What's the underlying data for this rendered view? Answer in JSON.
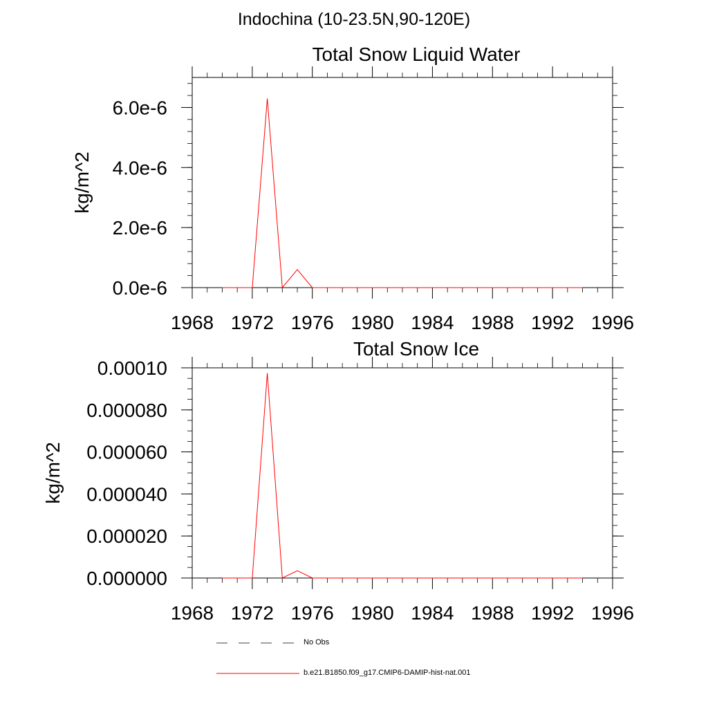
{
  "page": {
    "title": "Indochina (10-23.5N,90-120E)"
  },
  "chart_data": [
    {
      "type": "line",
      "title": "Total Snow Liquid Water",
      "ylabel": "kg/m^2",
      "xlim": [
        1968,
        1996
      ],
      "ylim": [
        0,
        7e-06
      ],
      "x_ticks": [
        1968,
        1972,
        1976,
        1980,
        1984,
        1988,
        1992,
        1996
      ],
      "x_tick_labels": [
        "1968",
        "1972",
        "1976",
        "1980",
        "1984",
        "1988",
        "1992",
        "1996"
      ],
      "y_ticks": [
        0,
        2e-06,
        4e-06,
        6e-06
      ],
      "y_tick_labels": [
        "0.0e-6",
        "2.0e-6",
        "4.0e-6",
        "6.0e-6"
      ],
      "grid": false,
      "series": [
        {
          "name": "b.e21.B1850.f09_g17.CMIP6-DAMIP-hist-nat.001",
          "color": "#ff0000",
          "x": [
            1970,
            1971,
            1972,
            1973,
            1974,
            1975,
            1976,
            1977,
            1978,
            1979,
            1980,
            1981,
            1982,
            1983,
            1984,
            1985,
            1986,
            1987,
            1988,
            1989,
            1990,
            1991,
            1992,
            1993,
            1994
          ],
          "y": [
            0,
            0,
            0,
            6.3e-06,
            0,
            6e-07,
            0,
            0,
            0,
            0,
            0,
            0,
            0,
            0,
            0,
            0,
            0,
            0,
            0,
            0,
            0,
            0,
            0,
            0,
            0
          ]
        }
      ]
    },
    {
      "type": "line",
      "title": "Total Snow Ice",
      "ylabel": "kg/m^2",
      "xlim": [
        1968,
        1996
      ],
      "ylim": [
        0,
        0.0001
      ],
      "x_ticks": [
        1968,
        1972,
        1976,
        1980,
        1984,
        1988,
        1992,
        1996
      ],
      "x_tick_labels": [
        "1968",
        "1972",
        "1976",
        "1980",
        "1984",
        "1988",
        "1992",
        "1996"
      ],
      "y_ticks": [
        0,
        2e-05,
        4e-05,
        6e-05,
        8e-05,
        0.0001
      ],
      "y_tick_labels": [
        "0.000000",
        "0.000020",
        "0.000040",
        "0.000060",
        "0.000080",
        "0.00010"
      ],
      "grid": false,
      "series": [
        {
          "name": "b.e21.B1850.f09_g17.CMIP6-DAMIP-hist-nat.001",
          "color": "#ff0000",
          "x": [
            1970,
            1971,
            1972,
            1973,
            1974,
            1975,
            1976,
            1977,
            1978,
            1979,
            1980,
            1981,
            1982,
            1983,
            1984,
            1985,
            1986,
            1987,
            1988,
            1989,
            1990,
            1991,
            1992,
            1993,
            1994
          ],
          "y": [
            0,
            0,
            0,
            9.75e-05,
            0,
            3.5e-06,
            0,
            0,
            0,
            0,
            0,
            0,
            0,
            0,
            0,
            0,
            0,
            0,
            0,
            0,
            0,
            0,
            0,
            0,
            0
          ]
        }
      ]
    }
  ],
  "legend": {
    "placement": "bottom",
    "items": [
      {
        "label": "No Obs",
        "color": "#000000",
        "style": "dashed"
      },
      {
        "label": "b.e21.B1850.f09_g17.CMIP6-DAMIP-hist-nat.001",
        "color": "#ff0000",
        "style": "solid"
      }
    ]
  }
}
